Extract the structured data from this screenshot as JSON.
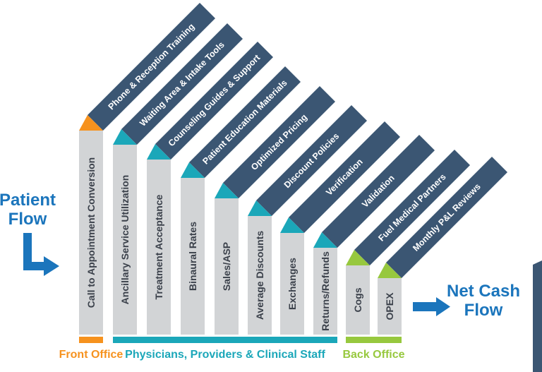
{
  "flow_labels": {
    "patient": {
      "line1": "Patient",
      "line2": "Flow"
    },
    "net_cash": {
      "line1": "Net Cash",
      "line2": "Flow"
    }
  },
  "colors": {
    "navy": "#3b5673",
    "gray": "#d2d4d6",
    "teal": "#1ba7b9",
    "orange": "#f6921e",
    "green": "#97c83e",
    "blue": "#1b75bc",
    "column_text": "#3b414b",
    "bar_text": "#ffffff"
  },
  "groups": [
    {
      "id": "front-office",
      "label": "Front Office",
      "color_key": "orange"
    },
    {
      "id": "clinical",
      "label": "Physicians, Providers & Clinical Staff",
      "color_key": "teal"
    },
    {
      "id": "back-office",
      "label": "Back Office",
      "color_key": "green"
    }
  ],
  "steps": [
    {
      "column": "Call to Appointment Conversion",
      "bar": "Phone & Reception Training",
      "group": "front-office"
    },
    {
      "column": "Ancillary Service Utilization",
      "bar": "Waiting Area & Intake Tools",
      "group": "clinical"
    },
    {
      "column": "Treatment Acceptance",
      "bar": "Counseling Guides & Support",
      "group": "clinical"
    },
    {
      "column": "Binaural Rates",
      "bar": "Patient Education Materials",
      "group": "clinical"
    },
    {
      "column": "Sales/ASP",
      "bar": "Optimized Pricing",
      "group": "clinical"
    },
    {
      "column": "Average Discounts",
      "bar": "Discount Policies",
      "group": "clinical"
    },
    {
      "column": "Exchanges",
      "bar": "Verification",
      "group": "clinical"
    },
    {
      "column": "Returns/Refunds",
      "bar": "Validation",
      "group": "clinical"
    },
    {
      "column": "Cogs",
      "bar": "Fuel Medical Partners",
      "group": "back-office"
    },
    {
      "column": "OPEX",
      "bar": "Monthly P&L Reviews",
      "group": "back-office"
    }
  ]
}
